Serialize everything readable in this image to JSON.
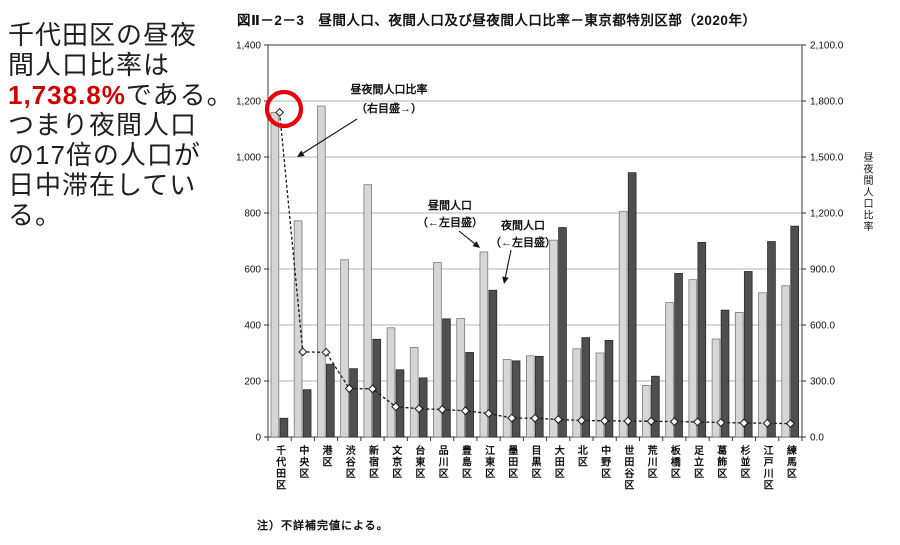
{
  "sidebar": {
    "highlight_color": "#d10000",
    "full_text": "千代田区の昼夜間人口比率は1,738.8%である。つまり夜間人口の17倍の人口が日中滞在している。",
    "lines": [
      [
        {
          "t": "千代田区の昼夜"
        }
      ],
      [
        {
          "t": "間人口比率は"
        }
      ],
      [
        {
          "t": "1,738.8%",
          "hl": true
        },
        {
          "t": "である。"
        }
      ],
      [
        {
          "t": "つまり夜間人口"
        }
      ],
      [
        {
          "t": "の17倍の人口が"
        }
      ],
      [
        {
          "t": "日中滞在してい"
        }
      ],
      [
        {
          "t": "る。"
        }
      ]
    ]
  },
  "chart": {
    "title": "図Ⅱ－2－3　昼間人口、夜間人口及び昼夜間人口比率－東京都特別区部（2020年）",
    "note": "注）不詳補完値による。"
  },
  "chart_data": {
    "type": "bar+line",
    "title": "昼間人口、夜間人口及び昼夜間人口比率－東京都特別区部（2020年）",
    "categories": [
      "千代田区",
      "中央区",
      "港区",
      "渋谷区",
      "新宿区",
      "文京区",
      "台東区",
      "品川区",
      "豊島区",
      "江東区",
      "墨田区",
      "目黒区",
      "大田区",
      "北区",
      "中野区",
      "世田谷区",
      "荒川区",
      "板橋区",
      "足立区",
      "葛飾区",
      "杉並区",
      "江戸川区",
      "練馬区"
    ],
    "series": [
      {
        "name": "昼間人口（←左目盛）",
        "type": "bar",
        "axis": "left",
        "color": "#d6d6d6",
        "values": [
          1159,
          772,
          1182,
          633,
          901,
          390,
          320,
          623,
          423,
          661,
          277,
          290,
          703,
          315,
          300,
          805,
          184,
          480,
          562,
          350,
          445,
          515,
          540
        ]
      },
      {
        "name": "夜間人口（←左目盛）",
        "type": "bar",
        "axis": "left",
        "color": "#4f4f4f",
        "values": [
          67,
          169,
          260,
          244,
          349,
          240,
          211,
          422,
          302,
          524,
          272,
          288,
          748,
          355,
          345,
          944,
          217,
          584,
          695,
          453,
          591,
          698,
          753
        ]
      },
      {
        "name": "昼夜間人口比率（右目盛）",
        "type": "line",
        "axis": "right",
        "color": "#1a1a1a",
        "values": [
          1738.8,
          456.1,
          453.7,
          259.5,
          258.0,
          162.5,
          151.4,
          147.4,
          140.3,
          126.1,
          101.8,
          100.6,
          94.0,
          88.6,
          87.0,
          85.3,
          84.5,
          82.2,
          80.9,
          77.3,
          75.3,
          73.8,
          71.7
        ]
      }
    ],
    "left_axis": {
      "min": 0,
      "max": 1400,
      "tick_interval": 200,
      "tick_labels": [
        "0",
        "200",
        "400",
        "600",
        "800",
        "1,000",
        "1,200",
        "1,400"
      ]
    },
    "right_axis": {
      "min": 0,
      "max": 2100,
      "tick_interval": 300,
      "tick_labels": [
        "0.0",
        "300.0",
        "600.0",
        "900.0",
        "1,200.0",
        "1,500.0",
        "1,800.0",
        "2,100.0"
      ],
      "title": "昼夜間人口比率"
    },
    "annotations": [
      {
        "lines": [
          "昼夜間人口比率",
          "（右目盛→）"
        ],
        "points_to": "ratio line"
      },
      {
        "lines": [
          "昼間人口",
          "（←左目盛）"
        ],
        "points_to": "daytime bar"
      },
      {
        "lines": [
          "夜間人口",
          "（←左目盛）"
        ],
        "points_to": "nighttime bar"
      }
    ],
    "highlight": {
      "shape": "circle",
      "color": "#e8000d",
      "target": "千代田区 ratio point 1738.8"
    }
  }
}
